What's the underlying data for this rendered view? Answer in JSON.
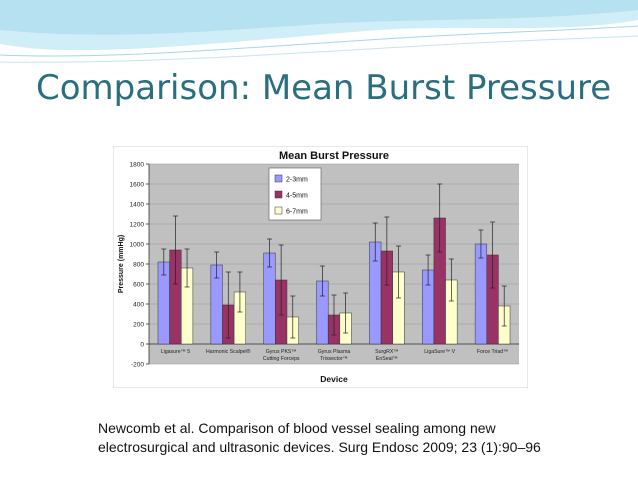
{
  "slide": {
    "title": "Comparison: Mean Burst Pressure",
    "citation_line1": "Newcomb et al. Comparison of blood vessel sealing among new",
    "citation_line2": "electrosurgical and ultrasonic devices. Surg Endosc 2009; 23 (1):90–96",
    "colors": {
      "title": "#2b6f7f",
      "header_wave": "#bfe6f2"
    }
  },
  "chart_data": {
    "type": "bar",
    "title": "Mean Burst Pressure",
    "xlabel": "Device",
    "ylabel": "Pressure (mmHg)",
    "ylim": [
      -200,
      1800
    ],
    "yticks": [
      -200,
      0,
      200,
      400,
      600,
      800,
      1000,
      1200,
      1400,
      1600,
      1800
    ],
    "grid": true,
    "legend_position": "top-left",
    "categories": [
      [
        "Ligasure™ 5"
      ],
      [
        "Harmonic Scalpel®"
      ],
      [
        "Gyrus PKS™",
        "Cutting Forceps"
      ],
      [
        "Gyrus Plasma",
        "Trissector™"
      ],
      [
        "SurgRX™",
        "EnSeal™"
      ],
      [
        "LigaSure™ V"
      ],
      [
        "Force Triad™"
      ]
    ],
    "series": [
      {
        "name": "2-3mm",
        "color": "#9999ff",
        "values": [
          820,
          790,
          910,
          630,
          1020,
          740,
          1000
        ],
        "errors": [
          130,
          130,
          140,
          150,
          190,
          150,
          140
        ]
      },
      {
        "name": "4-5mm",
        "color": "#993366",
        "values": [
          940,
          390,
          640,
          290,
          930,
          1260,
          890
        ],
        "errors": [
          340,
          330,
          350,
          200,
          340,
          340,
          330
        ]
      },
      {
        "name": "6-7mm",
        "color": "#ffffcc",
        "values": [
          760,
          520,
          270,
          310,
          720,
          640,
          380
        ],
        "errors": [
          190,
          200,
          210,
          200,
          260,
          210,
          200
        ]
      }
    ]
  }
}
